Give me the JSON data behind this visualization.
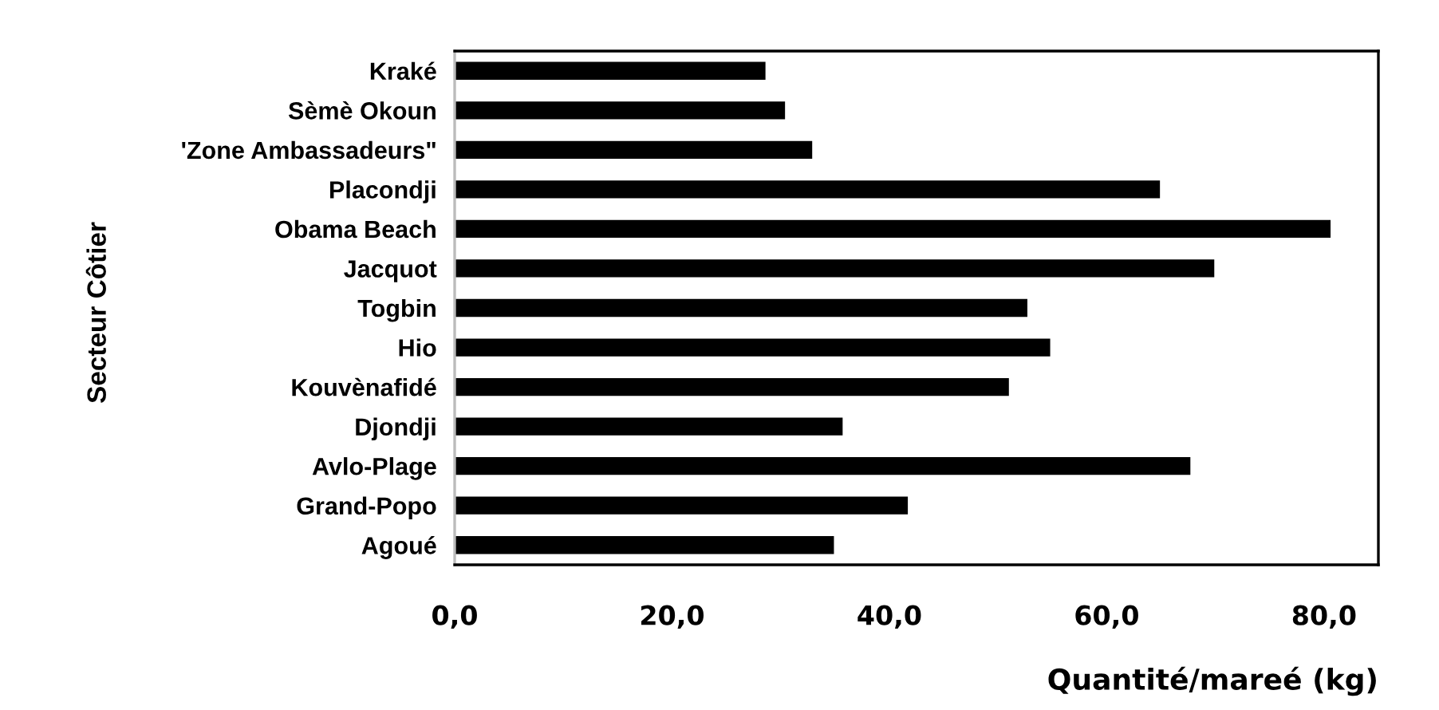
{
  "chart_data": {
    "type": "bar",
    "orientation": "horizontal",
    "xlabel": "Quantité/mareé (kg)",
    "ylabel": "Secteur Côtier",
    "categories": [
      "Kraké",
      "Sèmè Okoun",
      "'Zone Ambassadeurs\"",
      "Placondji",
      "Obama Beach",
      "Jacquot",
      "Togbin",
      "Hio",
      "Kouvènafidé",
      "Djondji",
      "Avlo-Plage",
      "Grand-Popo",
      "Agoué"
    ],
    "values": [
      28.6,
      30.4,
      32.9,
      64.9,
      80.6,
      69.9,
      52.7,
      54.8,
      51.0,
      35.7,
      67.7,
      41.7,
      34.9
    ],
    "color": "#000000",
    "xlim": [
      0,
      85
    ],
    "xticks": [
      {
        "value": 0,
        "label": "0,0"
      },
      {
        "value": 20,
        "label": "20,0"
      },
      {
        "value": 40,
        "label": "40,0"
      },
      {
        "value": 60,
        "label": "60,0"
      },
      {
        "value": 80,
        "label": "80,0"
      }
    ],
    "grid": false,
    "legend": false
  }
}
